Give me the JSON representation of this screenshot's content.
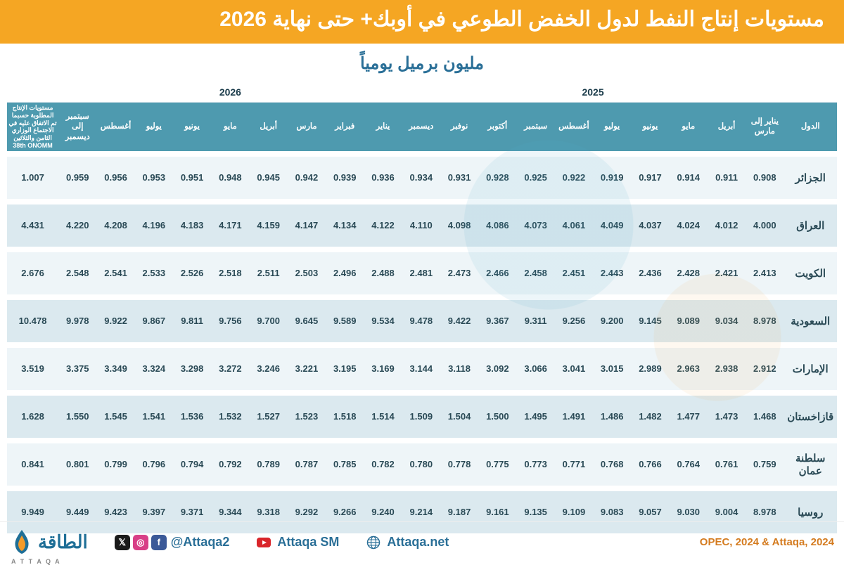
{
  "colors": {
    "title_bg": "#f5a623",
    "title_text": "#ffffff",
    "subtitle_text": "#2a6f97",
    "header_teal": "#4e9aaf",
    "header_text": "#ffffff",
    "year_text": "#1a3b4a",
    "row_even_bg": "#eef5f8",
    "row_odd_bg": "#dbe9ef",
    "cell_text": "#2a4a56",
    "footer_accent": "#2a6f97",
    "soc_x": "#1a1a1a",
    "soc_ig": "#d83f87",
    "soc_fb": "#3b5998",
    "source_text": "#d47b1f",
    "logo_blue": "#1f6f97",
    "logo_orange": "#f49b2a"
  },
  "title": "مستويات إنتاج النفط لدول الخفض الطوعي في أوبك+ حتى نهاية 2026",
  "subtitle": "مليون برميل يومياً",
  "source": "OPEC, 2024 & Attaqa, 2024",
  "footer": {
    "handle": "@Attaqa2",
    "yt": "Attaqa SM",
    "site": "Attaqa.net",
    "logo_ar": "الطاقة",
    "logo_en": "A T T A Q A"
  },
  "table": {
    "type": "table",
    "direction": "rtl-logical-ltr-render",
    "year_headers": {
      "y2025": "2025",
      "y2026": "2026"
    },
    "required_header": "مستويات الإنتاج المطلوبة حسبما تم الاتفاق عليه في الاجتماع الوزاري الثامن والثلاثين 38th ONOMM",
    "country_header": "الدول",
    "months_2026": [
      "سبتمبر إلى ديسمبر",
      "أغسطس",
      "يوليو",
      "يونيو",
      "مايو",
      "أبريل",
      "مارس",
      "فبراير",
      "يناير"
    ],
    "months_2025": [
      "ديسمبر",
      "نوفبر",
      "أكتوبر",
      "سبتمبر",
      "أغسطس",
      "يوليو",
      "يونيو",
      "مايو",
      "أبريل",
      "يناير إلى مارس"
    ],
    "countries": [
      "الجزائر",
      "العراق",
      "الكويت",
      "السعودية",
      "الإمارات",
      "قازاخستان",
      "سلطنة عمان",
      "روسيا"
    ],
    "rows": [
      {
        "req": "1.007",
        "v": [
          "0.959",
          "0.956",
          "0.953",
          "0.951",
          "0.948",
          "0.945",
          "0.942",
          "0.939",
          "0.936",
          "0.934",
          "0.931",
          "0.928",
          "0.925",
          "0.922",
          "0.919",
          "0.917",
          "0.914",
          "0.911",
          "0.908"
        ]
      },
      {
        "req": "4.431",
        "v": [
          "4.220",
          "4.208",
          "4.196",
          "4.183",
          "4.171",
          "4.159",
          "4.147",
          "4.134",
          "4.122",
          "4.110",
          "4.098",
          "4.086",
          "4.073",
          "4.061",
          "4.049",
          "4.037",
          "4.024",
          "4.012",
          "4.000"
        ]
      },
      {
        "req": "2.676",
        "v": [
          "2.548",
          "2.541",
          "2.533",
          "2.526",
          "2.518",
          "2.511",
          "2.503",
          "2.496",
          "2.488",
          "2.481",
          "2.473",
          "2.466",
          "2.458",
          "2.451",
          "2.443",
          "2.436",
          "2.428",
          "2.421",
          "2.413"
        ]
      },
      {
        "req": "10.478",
        "v": [
          "9.978",
          "9.922",
          "9.867",
          "9.811",
          "9.756",
          "9.700",
          "9.645",
          "9.589",
          "9.534",
          "9.478",
          "9.422",
          "9.367",
          "9.311",
          "9.256",
          "9.200",
          "9.145",
          "9.089",
          "9.034",
          "8.978"
        ]
      },
      {
        "req": "3.519",
        "v": [
          "3.375",
          "3.349",
          "3.324",
          "3.298",
          "3.272",
          "3.246",
          "3.221",
          "3.195",
          "3.169",
          "3.144",
          "3.118",
          "3.092",
          "3.066",
          "3.041",
          "3.015",
          "2.989",
          "2.963",
          "2.938",
          "2.912"
        ]
      },
      {
        "req": "1.628",
        "v": [
          "1.550",
          "1.545",
          "1.541",
          "1.536",
          "1.532",
          "1.527",
          "1.523",
          "1.518",
          "1.514",
          "1.509",
          "1.504",
          "1.500",
          "1.495",
          "1.491",
          "1.486",
          "1.482",
          "1.477",
          "1.473",
          "1.468"
        ]
      },
      {
        "req": "0.841",
        "v": [
          "0.801",
          "0.799",
          "0.796",
          "0.794",
          "0.792",
          "0.789",
          "0.787",
          "0.785",
          "0.782",
          "0.780",
          "0.778",
          "0.775",
          "0.773",
          "0.771",
          "0.768",
          "0.766",
          "0.764",
          "0.761",
          "0.759"
        ]
      },
      {
        "req": "9.949",
        "v": [
          "9.449",
          "9.423",
          "9.397",
          "9.371",
          "9.344",
          "9.318",
          "9.292",
          "9.266",
          "9.240",
          "9.214",
          "9.187",
          "9.161",
          "9.135",
          "9.109",
          "9.083",
          "9.057",
          "9.030",
          "9.004",
          "8.978"
        ]
      }
    ]
  }
}
